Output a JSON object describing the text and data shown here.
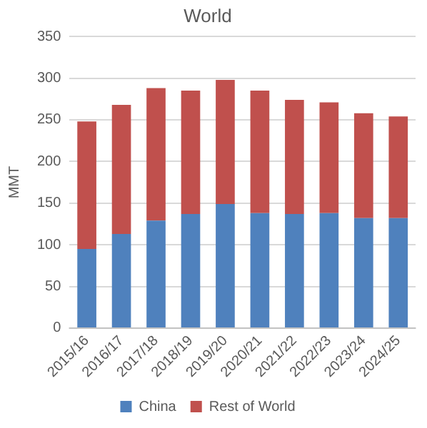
{
  "chart_data": {
    "type": "bar",
    "title": "World",
    "ylabel": "MMT",
    "stacked": true,
    "categories": [
      "2015/16",
      "2016/17",
      "2017/18",
      "2018/19",
      "2019/20",
      "2020/21",
      "2021/22",
      "2022/23",
      "2023/24",
      "2024/25"
    ],
    "series": [
      {
        "name": "China",
        "color": "#4f81bd",
        "values": [
          95,
          113,
          129,
          137,
          149,
          138,
          137,
          138,
          132,
          132
        ]
      },
      {
        "name": "Rest of World",
        "color": "#c0504d",
        "values": [
          153,
          155,
          159,
          148,
          149,
          147,
          137,
          133,
          126,
          122
        ]
      }
    ],
    "ylim": [
      0,
      350
    ],
    "yticks": [
      0,
      50,
      100,
      150,
      200,
      250,
      300,
      350
    ],
    "grid": "y",
    "legend": "bottom"
  }
}
